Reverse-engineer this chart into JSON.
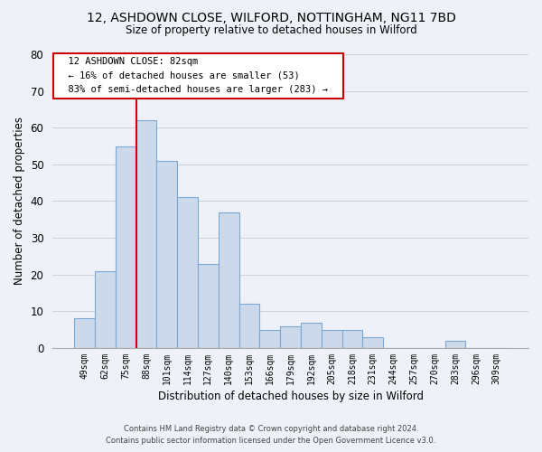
{
  "title": "12, ASHDOWN CLOSE, WILFORD, NOTTINGHAM, NG11 7BD",
  "subtitle": "Size of property relative to detached houses in Wilford",
  "xlabel": "Distribution of detached houses by size in Wilford",
  "ylabel": "Number of detached properties",
  "bar_labels": [
    "49sqm",
    "62sqm",
    "75sqm",
    "88sqm",
    "101sqm",
    "114sqm",
    "127sqm",
    "140sqm",
    "153sqm",
    "166sqm",
    "179sqm",
    "192sqm",
    "205sqm",
    "218sqm",
    "231sqm",
    "244sqm",
    "257sqm",
    "270sqm",
    "283sqm",
    "296sqm",
    "309sqm"
  ],
  "bar_values": [
    8,
    21,
    55,
    62,
    51,
    41,
    23,
    37,
    12,
    5,
    6,
    7,
    5,
    5,
    3,
    0,
    0,
    0,
    2,
    0,
    0
  ],
  "bar_color": "#ccd9eb",
  "bar_edge_color": "#7aa8d2",
  "vline_color": "#cc0000",
  "ylim": [
    0,
    80
  ],
  "yticks": [
    0,
    10,
    20,
    30,
    40,
    50,
    60,
    70,
    80
  ],
  "annotation_title": "12 ASHDOWN CLOSE: 82sqm",
  "annotation_line1": "← 16% of detached houses are smaller (53)",
  "annotation_line2": "83% of semi-detached houses are larger (283) →",
  "annotation_box_color": "#ffffff",
  "annotation_box_edge": "#cc0000",
  "footer_line1": "Contains HM Land Registry data © Crown copyright and database right 2024.",
  "footer_line2": "Contains public sector information licensed under the Open Government Licence v3.0.",
  "bg_color": "#eef2f8",
  "grid_color": "#c8d0de"
}
